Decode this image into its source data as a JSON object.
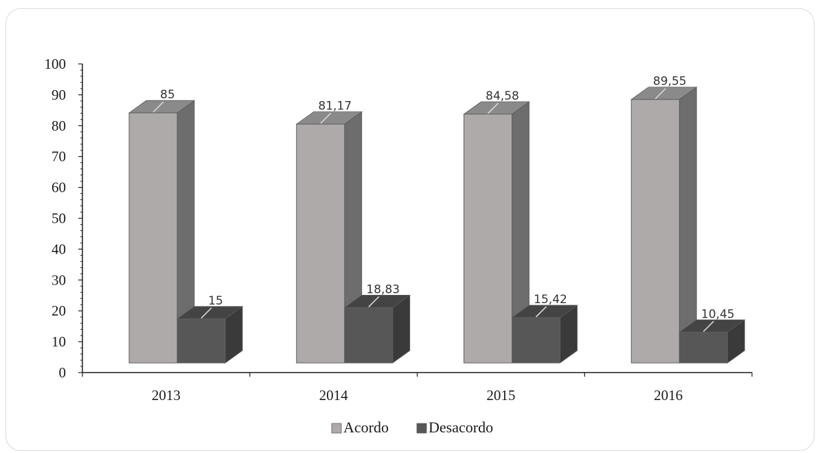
{
  "chart_data": {
    "type": "bar",
    "categories": [
      "2013",
      "2014",
      "2015",
      "2016"
    ],
    "series": [
      {
        "name": "Acordo",
        "values": [
          85,
          81.17,
          84.58,
          89.55
        ],
        "labels": [
          "85",
          "81,17",
          "84,58",
          "89,55"
        ],
        "color": "#aeaaaa",
        "side_color": "#6d6d6d",
        "top_color": "#8a8a8a"
      },
      {
        "name": "Desacordo",
        "values": [
          15,
          18.83,
          15.42,
          10.45
        ],
        "labels": [
          "15",
          "18,83",
          "15,42",
          "10,45"
        ],
        "color": "#575757",
        "side_color": "#3a3a3a",
        "top_color": "#444444"
      }
    ],
    "ylim": [
      0,
      100
    ],
    "yticks": [
      "0",
      "10",
      "20",
      "30",
      "40",
      "50",
      "60",
      "70",
      "80",
      "90",
      "100"
    ],
    "title": "",
    "xlabel": "",
    "ylabel": "",
    "legend_position": "bottom",
    "grid": false,
    "style": "3d-column"
  }
}
